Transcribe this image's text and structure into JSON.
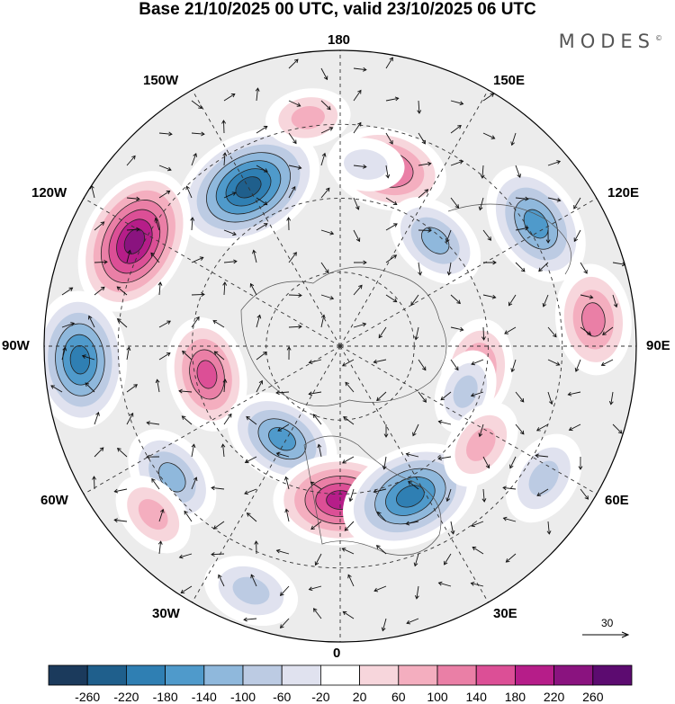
{
  "header": {
    "title": "Base 21/10/2025 00 UTC, valid 23/10/2025 06 UTC",
    "brand": "MODES",
    "brand_mark": "©"
  },
  "map": {
    "projection": "north-polar-stereographic",
    "lon_labels": {
      "top": "180",
      "bottom": "0",
      "left": "90W",
      "right": "90E",
      "upper_left": "150W",
      "upper_right": "150E",
      "mid_upper_left": "120W",
      "mid_upper_right": "120E",
      "mid_lower_left": "60W",
      "mid_lower_right": "60E",
      "lower_left": "30W",
      "lower_right": "30E"
    },
    "reference_vector": "30"
  },
  "legend": {
    "ticks": [
      "-260",
      "-220",
      "-180",
      "-140",
      "-100",
      "-60",
      "-20",
      "20",
      "60",
      "100",
      "140",
      "180",
      "220",
      "260"
    ],
    "colors": [
      "#1b3a5c",
      "#1f5f8c",
      "#2f7fb3",
      "#4f9acb",
      "#8fb8dc",
      "#bccbe3",
      "#e0e2ef",
      "#ffffff",
      "#f7d6dc",
      "#f4aebf",
      "#ea7fa6",
      "#dc4f96",
      "#b61d89",
      "#8a137f",
      "#5c0b70"
    ]
  },
  "anomalies": [
    {
      "name": "low-150W",
      "value": -240,
      "lon": -150,
      "rdist": 0.62
    },
    {
      "name": "high-120W",
      "value": 230,
      "lon": -117,
      "rdist": 0.78
    },
    {
      "name": "low-90W",
      "value": -200,
      "lon": -87,
      "rdist": 0.88
    },
    {
      "name": "high-90W",
      "value": 140,
      "lon": -78,
      "rdist": 0.46
    },
    {
      "name": "low-60W",
      "value": -120,
      "lon": -52,
      "rdist": 0.72
    },
    {
      "name": "low-45W",
      "value": -150,
      "lon": -32,
      "rdist": 0.37
    },
    {
      "name": "high-60W",
      "value": 70,
      "lon": -48,
      "rdist": 0.85
    },
    {
      "name": "high-0",
      "value": 190,
      "lon": 0,
      "rdist": 0.52
    },
    {
      "name": "low-25E",
      "value": -210,
      "lon": 25,
      "rdist": 0.56
    },
    {
      "name": "low-40W",
      "value": -90,
      "lon": -20,
      "rdist": 0.88
    },
    {
      "name": "high-160E",
      "value": 150,
      "lon": 165,
      "rdist": 0.62
    },
    {
      "name": "low-120E",
      "value": -170,
      "lon": 122,
      "rdist": 0.78
    },
    {
      "name": "low-140E",
      "value": -110,
      "lon": 138,
      "rdist": 0.48
    },
    {
      "name": "high-90E",
      "value": 130,
      "lon": 96,
      "rdist": 0.86
    },
    {
      "name": "high-95E",
      "value": 110,
      "lon": 80,
      "rdist": 0.47
    },
    {
      "name": "low-70E",
      "value": -60,
      "lon": 70,
      "rdist": 0.45
    },
    {
      "name": "high-60E",
      "value": 80,
      "lon": 55,
      "rdist": 0.58
    },
    {
      "name": "low-60E",
      "value": -90,
      "lon": 57,
      "rdist": 0.82
    },
    {
      "name": "high-180",
      "value": 60,
      "lon": -172,
      "rdist": 0.78
    },
    {
      "name": "low-170E",
      "value": -40,
      "lon": 172,
      "rdist": 0.62
    }
  ]
}
